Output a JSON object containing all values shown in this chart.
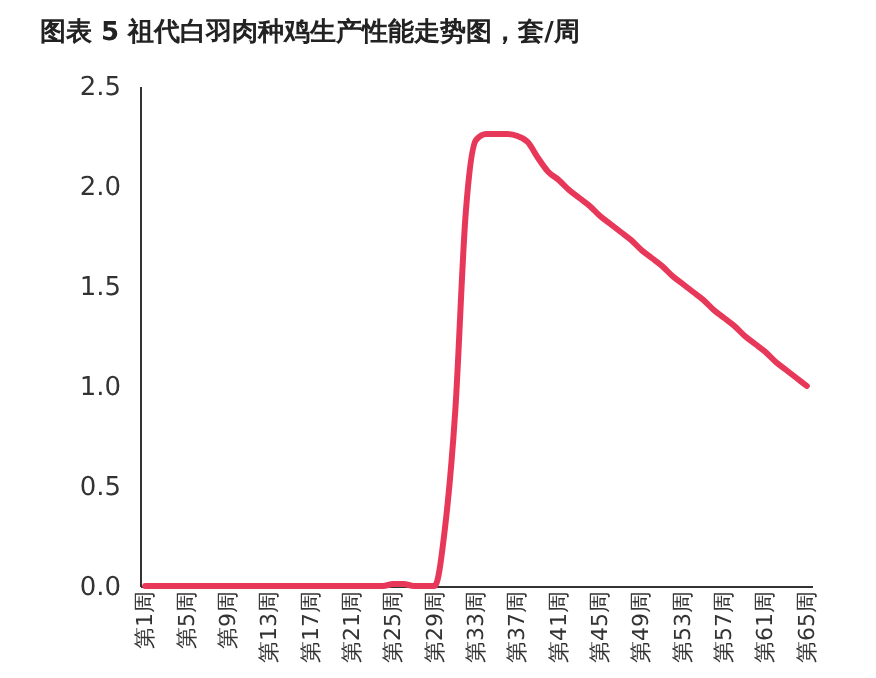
{
  "chart_data": {
    "type": "line",
    "title": "图表 5 祖代白羽肉种鸡生产性能走势图，套/周",
    "categories": [
      "第1周",
      null,
      null,
      null,
      "第5周",
      null,
      null,
      null,
      "第9周",
      null,
      null,
      null,
      "第13周",
      null,
      null,
      null,
      "第17周",
      null,
      null,
      null,
      "第21周",
      null,
      null,
      null,
      "第25周",
      null,
      null,
      null,
      "第29周",
      null,
      null,
      null,
      "第33周",
      null,
      null,
      null,
      "第37周",
      null,
      null,
      null,
      "第41周",
      null,
      null,
      null,
      "第45周",
      null,
      null,
      null,
      "第49周",
      null,
      null,
      null,
      "第53周",
      null,
      null,
      null,
      "第57周",
      null,
      null,
      null,
      "第61周",
      null,
      null,
      null,
      "第65周"
    ],
    "series": [
      {
        "color": "#e8385a",
        "values": [
          0,
          0,
          0,
          0,
          0,
          0,
          0,
          0,
          0,
          0,
          0,
          0,
          0,
          0,
          0,
          0,
          0,
          0,
          0,
          0,
          0,
          0,
          0,
          0,
          0.01,
          0.01,
          0,
          0,
          0,
          0.29,
          0.88,
          1.86,
          2.23,
          2.26,
          2.26,
          2.26,
          2.25,
          2.22,
          2.14,
          2.07,
          2.03,
          1.98,
          1.94,
          1.9,
          1.85,
          1.81,
          1.77,
          1.73,
          1.68,
          1.64,
          1.6,
          1.55,
          1.51,
          1.47,
          1.43,
          1.38,
          1.34,
          1.3,
          1.25,
          1.21,
          1.17,
          1.12,
          1.08,
          1.04,
          1.0
        ]
      }
    ],
    "ylim": [
      0,
      2.5
    ],
    "yticks": [
      {
        "value": 0,
        "label": "0.0"
      },
      0.5,
      {
        "value": 1,
        "label": "1.0"
      },
      1.5,
      {
        "value": 2,
        "label": "2.0"
      },
      2.5
    ],
    "grid": false,
    "marker": "none",
    "line_style": "solid"
  }
}
